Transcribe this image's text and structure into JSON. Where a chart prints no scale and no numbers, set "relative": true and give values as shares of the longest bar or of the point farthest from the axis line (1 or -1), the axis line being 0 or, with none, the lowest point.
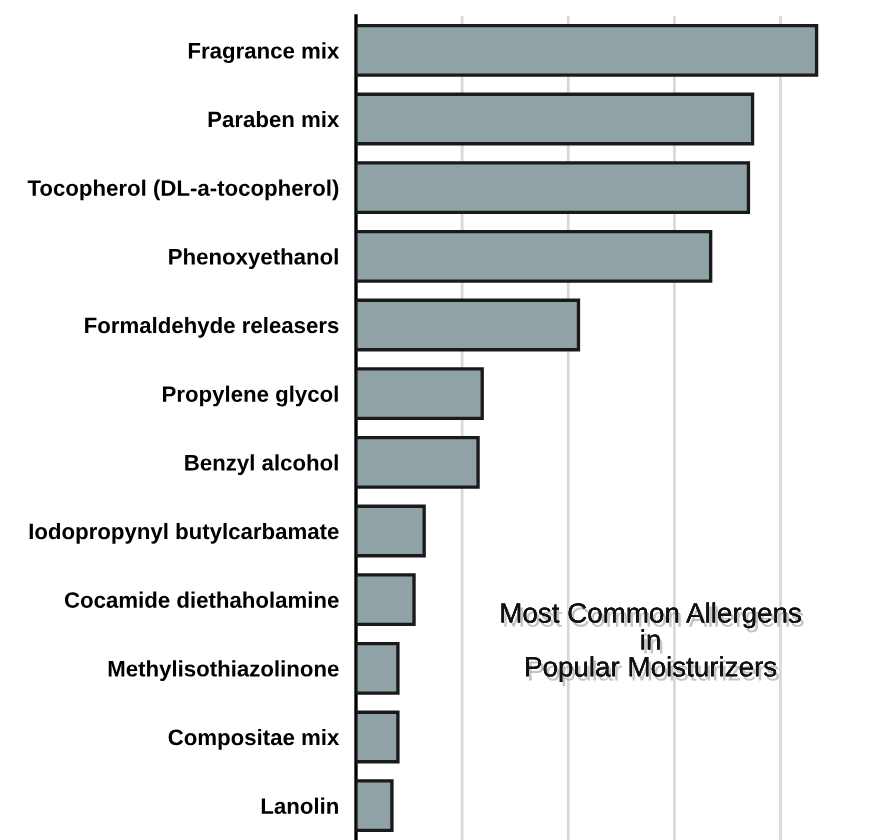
{
  "chart_data": {
    "type": "bar",
    "orientation": "horizontal",
    "relative": true,
    "title": "Most Common Allergens\nin\nPopular Moisturizers",
    "categories": [
      "Fragrance mix",
      "Paraben mix",
      "Tocopherol (DL-a-tocopherol)",
      "Phenoxyethanol",
      "Formaldehyde releasers",
      "Propylene glycol",
      "Benzyl alcohol",
      "Iodopropynyl butylcarbamate",
      "Cocamide diethaholamine",
      "Methylisothiazolinone",
      "Compositae mix",
      "Lanolin"
    ],
    "values": [
      1,
      0.861,
      0.852,
      0.77,
      0.483,
      0.274,
      0.265,
      0.148,
      0.126,
      0.091,
      0.091,
      0.078
    ],
    "color": "#8fa3a7",
    "grid": "x"
  }
}
